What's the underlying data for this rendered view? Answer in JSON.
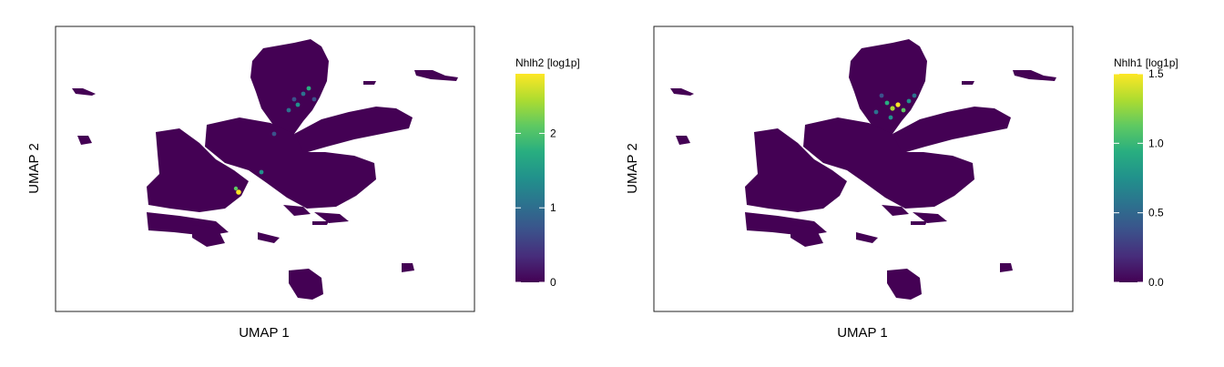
{
  "chart_data": [
    {
      "type": "heatmap",
      "subtype": "umap-hexbin",
      "xlabel": "UMAP 1",
      "ylabel": "UMAP 2",
      "colorbar": {
        "title": "Nhlh2 [log1p]",
        "colormap": "viridis",
        "range": [
          0,
          2.8
        ],
        "ticks": [
          0,
          1,
          2
        ],
        "tick_labels": [
          "0",
          "1",
          "2"
        ]
      },
      "background_value": 0,
      "hotspots": [
        {
          "cluster": "top-lobe",
          "value": 1.2
        },
        {
          "cluster": "top-lobe",
          "value": 1.6
        },
        {
          "cluster": "top-lobe",
          "value": 2.0
        },
        {
          "cluster": "center-left",
          "value": 2.8
        }
      ]
    },
    {
      "type": "heatmap",
      "subtype": "umap-hexbin",
      "xlabel": "UMAP 1",
      "ylabel": "UMAP 2",
      "colorbar": {
        "title": "Nhlh1 [log1p]",
        "colormap": "viridis",
        "range": [
          0,
          1.5
        ],
        "ticks": [
          0,
          0.5,
          1.0,
          1.5
        ],
        "tick_labels": [
          "0.0",
          "0.5",
          "1.0",
          "1.5"
        ]
      },
      "background_value": 0,
      "hotspots": [
        {
          "cluster": "top-lobe",
          "value": 0.6
        },
        {
          "cluster": "top-lobe",
          "value": 0.9
        },
        {
          "cluster": "top-lobe",
          "value": 1.2
        },
        {
          "cluster": "top-lobe",
          "value": 1.5
        }
      ]
    }
  ],
  "colors": {
    "viridis_low": "#440154",
    "viridis_mid": "#21918c",
    "viridis_high": "#fde725"
  }
}
